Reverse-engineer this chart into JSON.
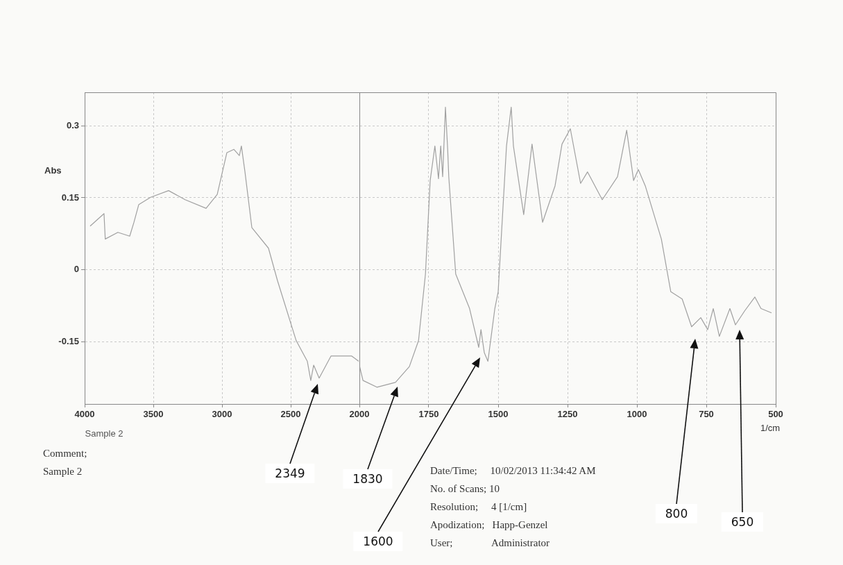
{
  "chart_data": [
    {
      "type": "line",
      "ylabel": "Abs",
      "xlim": [
        4000,
        2000
      ],
      "ylim": [
        -0.28,
        0.37
      ],
      "xticks": [
        4000,
        3500,
        3000,
        2500,
        2000
      ],
      "yticks": [
        -0.15,
        0,
        0.15,
        0.3
      ],
      "grid": true,
      "legend": false,
      "marker": "none",
      "line_style": "solid",
      "x": [
        3960,
        3859,
        3850,
        3758,
        3672,
        3641,
        3606,
        3520,
        3389,
        3268,
        3116,
        3035,
        2965,
        2914,
        2874,
        2859,
        2833,
        2783,
        2662,
        2596,
        2460,
        2379,
        2354,
        2333,
        2293,
        2207,
        2056,
        2005
      ],
      "series": [
        {
          "color": "#a0a0a0",
          "values": [
            0.091,
            0.117,
            0.064,
            0.078,
            0.07,
            0.099,
            0.136,
            0.151,
            0.165,
            0.146,
            0.128,
            0.157,
            0.244,
            0.251,
            0.238,
            0.258,
            0.204,
            0.088,
            0.045,
            -0.023,
            -0.148,
            -0.191,
            -0.231,
            -0.199,
            -0.226,
            -0.18,
            -0.18,
            -0.191
          ]
        }
      ],
      "annotations": [
        "Sample 2",
        "Comment;\nSample 2",
        "Date/Time;     10/02/2013 11:34:42 AM\nNo. of Scans; 10\nResolution;     4 [1/cm]\nApodization;   Happ-Genzel\nUser;               Administrator",
        "2349"
      ]
    },
    {
      "type": "line",
      "xlabel": "1/cm",
      "xlim": [
        2000,
        500
      ],
      "ylim": [
        -0.28,
        0.37
      ],
      "xticks": [
        1750,
        1500,
        1250,
        1000,
        750,
        500
      ],
      "yticks": [
        -0.15,
        0,
        0.15,
        0.3
      ],
      "grid": true,
      "legend": false,
      "marker": "none",
      "line_style": "solid",
      "tick_labels": "x",
      "x": [
        2000,
        1987,
        1937,
        1870,
        1820,
        1787,
        1762,
        1745,
        1728,
        1715,
        1707,
        1700,
        1690,
        1682,
        1678,
        1653,
        1603,
        1570,
        1562,
        1550,
        1537,
        1512,
        1500,
        1470,
        1453,
        1445,
        1408,
        1378,
        1340,
        1295,
        1270,
        1240,
        1203,
        1178,
        1125,
        1070,
        1037,
        1012,
        995,
        970,
        912,
        878,
        837,
        803,
        770,
        745,
        725,
        703,
        665,
        645,
        612,
        575,
        553,
        515
      ],
      "series": [
        {
          "color": "#a0a0a0",
          "values": [
            -0.2,
            -0.231,
            -0.245,
            -0.235,
            -0.202,
            -0.148,
            -0.009,
            0.186,
            0.258,
            0.19,
            0.258,
            0.194,
            0.339,
            0.252,
            0.194,
            -0.009,
            -0.081,
            -0.162,
            -0.125,
            -0.173,
            -0.191,
            -0.081,
            -0.046,
            0.258,
            0.339,
            0.258,
            0.115,
            0.262,
            0.099,
            0.175,
            0.262,
            0.294,
            0.18,
            0.204,
            0.146,
            0.194,
            0.291,
            0.186,
            0.209,
            0.175,
            0.064,
            -0.046,
            -0.061,
            -0.119,
            -0.1,
            -0.125,
            -0.081,
            -0.139,
            -0.081,
            -0.115,
            -0.086,
            -0.057,
            -0.081,
            -0.09
          ]
        }
      ],
      "annotations": [
        "1830",
        "1600",
        "800",
        "650"
      ]
    }
  ]
}
